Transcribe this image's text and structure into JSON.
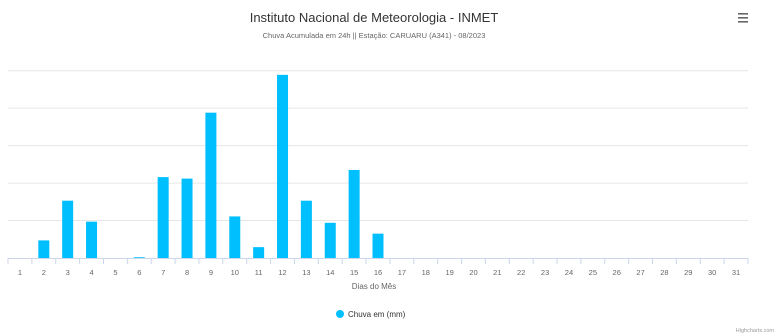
{
  "chart_data": {
    "type": "bar",
    "title": "Instituto Nacional de Meteorologia - INMET",
    "subtitle": "Chuva Acumulada em 24h || Estação: CARUARU (A341) - 08/2023",
    "xlabel": "Dias do Mês",
    "ylabel": "",
    "categories": [
      "1",
      "2",
      "3",
      "4",
      "5",
      "6",
      "7",
      "8",
      "9",
      "10",
      "11",
      "12",
      "13",
      "14",
      "15",
      "16",
      "17",
      "18",
      "19",
      "20",
      "21",
      "22",
      "23",
      "24",
      "25",
      "26",
      "27",
      "28",
      "29",
      "30",
      "31"
    ],
    "series": [
      {
        "name": "Chuva em (mm)",
        "color": "#00bfff",
        "values": [
          0,
          4.7,
          15.3,
          9.7,
          0,
          0.2,
          21.6,
          21.2,
          38.8,
          11.1,
          2.9,
          48.9,
          15.3,
          9.4,
          23.5,
          6.5,
          0,
          0,
          0,
          0,
          0,
          0,
          0,
          0,
          0,
          0,
          0,
          0,
          0,
          0,
          0
        ]
      }
    ],
    "ylim": [
      0,
      55
    ],
    "grid": true,
    "legend": "bottom-center"
  },
  "ui": {
    "menu_icon": "hamburger-icon",
    "credits": "Highcharts.com"
  }
}
